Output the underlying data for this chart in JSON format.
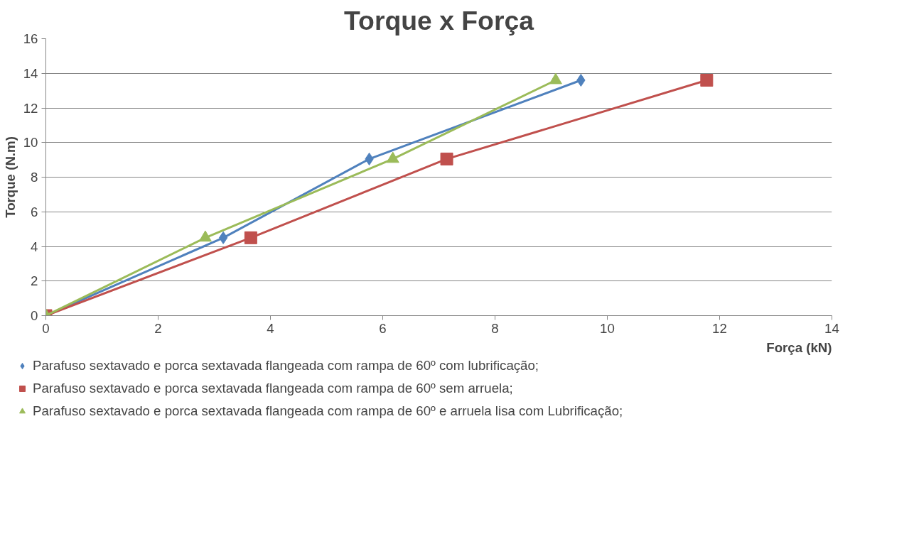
{
  "chart_data": {
    "type": "line",
    "title": "Torque x Força",
    "xlabel": "Força (kN)",
    "ylabel": "Torque (N.m)",
    "xlim": [
      0,
      14
    ],
    "xticks": [
      0,
      2,
      4,
      6,
      8,
      10,
      12,
      14
    ],
    "ylim": [
      0,
      16
    ],
    "yticks": [
      0,
      2,
      4,
      6,
      8,
      10,
      12,
      14,
      16
    ],
    "grid": "y",
    "legend": "bottom",
    "line_style": "solid",
    "series": [
      {
        "name": "Parafuso sextavado e porca sextavada flangeada com rampa de 60º com lubrificação;",
        "color": "#4f81bd",
        "marker": "diamond",
        "x": [
          0,
          3.16,
          5.76,
          9.53
        ],
        "values": [
          0,
          4.5,
          9.05,
          13.6
        ]
      },
      {
        "name": "Parafuso sextavado e porca sextavada flangeada com rampa de 60º sem arruela;",
        "color": "#c0504d",
        "marker": "square",
        "x": [
          0,
          3.65,
          7.14,
          11.77
        ],
        "values": [
          0,
          4.5,
          9.05,
          13.6
        ]
      },
      {
        "name": "Parafuso sextavado e porca sextavada flangeada com rampa de 60º e arruela lisa com Lubrificação;",
        "color": "#9bbb59",
        "marker": "triangle",
        "x": [
          0,
          2.84,
          6.18,
          9.08
        ],
        "values": [
          0,
          4.5,
          9.05,
          13.6
        ]
      }
    ]
  }
}
